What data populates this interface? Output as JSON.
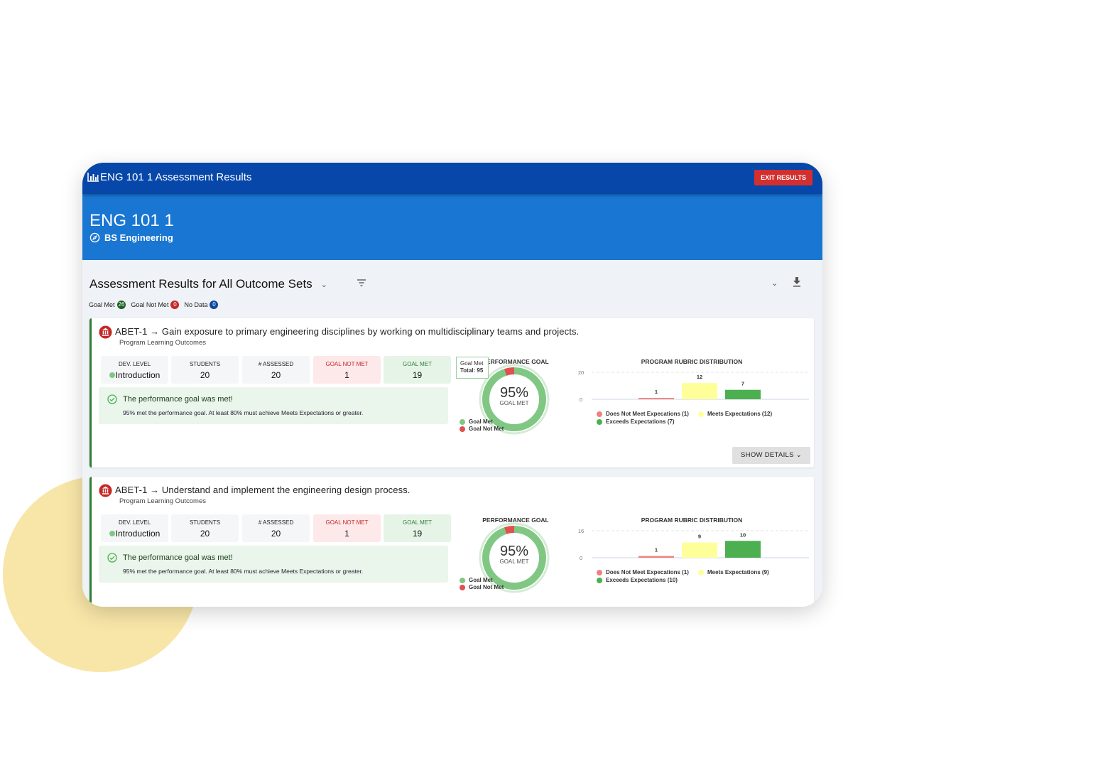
{
  "window": {
    "title": "ENG 101 1 Assessment Results",
    "exit_label": "EXIT RESULTS"
  },
  "hero": {
    "course": "ENG 101 1",
    "program": "BS Engineering"
  },
  "section": {
    "title": "Assessment Results for All Outcome Sets",
    "badges": [
      {
        "label": "Goal Met",
        "count": "26",
        "color": "#1b5e20"
      },
      {
        "label": "Goal Not Met",
        "count": "0",
        "color": "#c62828"
      },
      {
        "label": "No Data",
        "count": "0",
        "color": "#0d47a1"
      }
    ]
  },
  "colors": {
    "goal_met": "#81c784",
    "goal_not_met": "#e05050",
    "does_not_meet": "#f08080",
    "meets": "#ffff99",
    "exceeds": "#4caf50"
  },
  "cards": [
    {
      "title": "ABET-1 → Gain exposure to primary engineering disciplines by working on multidisciplinary teams and projects.",
      "subtitle": "Program Learning Outcomes",
      "stats": [
        {
          "label": "DEV. LEVEL",
          "value": "Introduction"
        },
        {
          "label": "STUDENTS",
          "value": "20"
        },
        {
          "label": "# ASSESSED",
          "value": "20"
        },
        {
          "label": "GOAL NOT MET",
          "value": "1"
        },
        {
          "label": "GOAL MET",
          "value": "19"
        }
      ],
      "message_title": "The performance goal was met!",
      "message_body": "95% met the performance goal. At least 80% must achieve Meets Expectations or greater.",
      "perf_title": "PERFORMANCE GOAL",
      "percent": "95%",
      "percent_value": 95,
      "percent_label": "GOAL MET",
      "tooltip": {
        "line1": "Goal Met",
        "line2": "Total: 95"
      },
      "donut_legend": [
        "Goal Met",
        "Goal Not Met"
      ],
      "rubric": {
        "title": "PROGRAM RUBRIC DISTRIBUTION",
        "ymax": 20,
        "yticks": [
          "20",
          "0"
        ],
        "values": [
          1,
          12,
          7
        ],
        "labels": [
          "1",
          "12",
          "7"
        ],
        "legend": [
          "Does Not Meet Expecations (1)",
          "Meets Expectations (12)",
          "Exceeds Expectations (7)"
        ]
      },
      "show_details": "SHOW DETAILS"
    },
    {
      "title": "ABET-1 → Understand and implement the engineering design process.",
      "subtitle": "Program Learning Outcomes",
      "stats": [
        {
          "label": "DEV. LEVEL",
          "value": "Introduction"
        },
        {
          "label": "STUDENTS",
          "value": "20"
        },
        {
          "label": "# ASSESSED",
          "value": "20"
        },
        {
          "label": "GOAL NOT MET",
          "value": "1"
        },
        {
          "label": "GOAL MET",
          "value": "19"
        }
      ],
      "message_title": "The performance goal was met!",
      "message_body": "95% met the performance goal. At least 80% must achieve Meets Expectations or greater.",
      "perf_title": "PERFORMANCE GOAL",
      "percent": "95%",
      "percent_value": 95,
      "percent_label": "GOAL MET",
      "donut_legend": [
        "Goal Met",
        "Goal Not Met"
      ],
      "rubric": {
        "title": "PROGRAM RUBRIC DISTRIBUTION",
        "ymax": 16,
        "yticks": [
          "16",
          "0"
        ],
        "values": [
          1,
          9,
          10
        ],
        "labels": [
          "1",
          "9",
          "10"
        ],
        "legend": [
          "Does Not Meet Expecations (1)",
          "Meets Expectations (9)",
          "Exceeds Expectations (10)"
        ]
      }
    }
  ]
}
